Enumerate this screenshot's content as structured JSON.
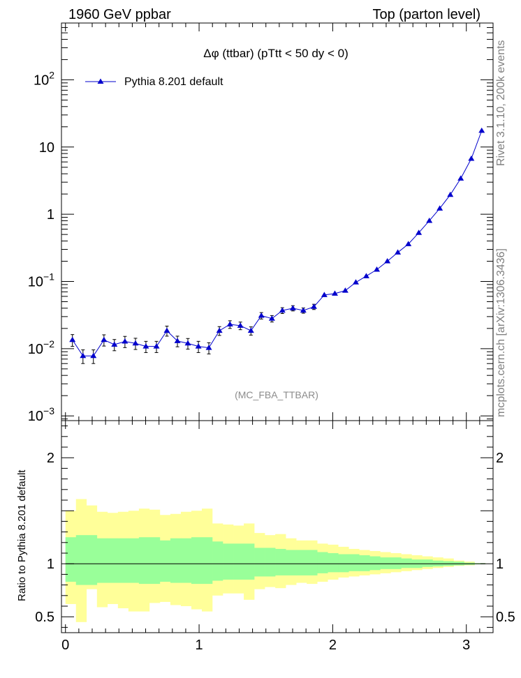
{
  "header": {
    "left": "1960 GeV ppbar",
    "right": "Top (parton level)"
  },
  "side_labels": {
    "rivet": "Rivet 3.1.10, 200k events",
    "mcplots": "mcplots.cern.ch [arXiv:1306.3436]"
  },
  "analysis_id": "(MC_FBA_TTBAR)",
  "colors": {
    "mc": "#0000cc",
    "band_inner": "#99ff99",
    "band_outer": "#ffff99",
    "axis": "#000000",
    "side_text": "#808080"
  },
  "chart_data": [
    {
      "type": "line",
      "title": "Δφ (ttbar) (pTtt < 50 dy < 0)",
      "log_y": true,
      "ylim": [
        0.00085,
        700
      ],
      "xlim": [
        -0.03,
        3.2
      ],
      "y_tick_labels": [
        {
          "value": 0.001,
          "base": "10",
          "exp": "−3",
          "text": ""
        },
        {
          "value": 0.01,
          "base": "10",
          "exp": "−2",
          "text": ""
        },
        {
          "value": 0.1,
          "base": "10",
          "exp": "−1",
          "text": ""
        },
        {
          "value": 1,
          "base": "",
          "exp": "",
          "text": "1"
        },
        {
          "value": 10,
          "base": "",
          "exp": "",
          "text": "10"
        },
        {
          "value": 100,
          "base": "10",
          "exp": "2",
          "text": ""
        }
      ],
      "legend": {
        "label": "Pythia 8.201 default",
        "position": "top-left"
      },
      "series": [
        {
          "name": "Pythia 8.201 default",
          "marker": "triangle",
          "x": [
            0.052,
            0.131,
            0.209,
            0.288,
            0.366,
            0.445,
            0.524,
            0.602,
            0.681,
            0.759,
            0.838,
            0.916,
            0.995,
            1.073,
            1.152,
            1.231,
            1.309,
            1.388,
            1.466,
            1.545,
            1.623,
            1.702,
            1.78,
            1.859,
            1.937,
            2.016,
            2.094,
            2.173,
            2.251,
            2.33,
            2.409,
            2.487,
            2.566,
            2.644,
            2.723,
            2.801,
            2.88,
            2.958,
            3.037,
            3.115
          ],
          "y": [
            0.0135,
            0.0078,
            0.0078,
            0.0135,
            0.0115,
            0.0128,
            0.012,
            0.0108,
            0.0108,
            0.0185,
            0.013,
            0.012,
            0.0108,
            0.0103,
            0.0185,
            0.023,
            0.022,
            0.0185,
            0.031,
            0.028,
            0.037,
            0.04,
            0.037,
            0.042,
            0.063,
            0.066,
            0.073,
            0.097,
            0.12,
            0.15,
            0.2,
            0.27,
            0.36,
            0.53,
            0.8,
            1.22,
            1.95,
            3.4,
            6.7,
            17.5
          ],
          "err_rel": [
            0.2,
            0.23,
            0.23,
            0.19,
            0.19,
            0.19,
            0.19,
            0.19,
            0.19,
            0.17,
            0.18,
            0.18,
            0.19,
            0.19,
            0.15,
            0.13,
            0.13,
            0.14,
            0.11,
            0.11,
            0.1,
            0.09,
            0.09,
            0.09,
            0.07,
            0.07,
            0.06,
            0.06,
            0.05,
            0.05,
            0.04,
            0.04,
            0.03,
            0.03,
            0.03,
            0.02,
            0.02,
            0.02,
            0.01,
            0.01
          ]
        }
      ]
    },
    {
      "type": "area",
      "ylabel": "Ratio to Pythia 8.201 default",
      "ylim": [
        0.35,
        2.35
      ],
      "xlim": [
        -0.03,
        3.2
      ],
      "y_ticks": [
        0.5,
        1,
        2
      ],
      "y_tick_labels": [
        "0.5",
        "1",
        "2"
      ],
      "x_ticks": [
        0,
        1,
        2,
        3
      ],
      "x_tick_labels": [
        "0",
        "1",
        "2",
        "3"
      ],
      "reference_line": 1,
      "bin_edges": [
        0.0,
        0.0785,
        0.157,
        0.2355,
        0.314,
        0.3925,
        0.471,
        0.5495,
        0.628,
        0.7065,
        0.785,
        0.8635,
        0.942,
        1.0205,
        1.099,
        1.1775,
        1.256,
        1.3345,
        1.413,
        1.4915,
        1.57,
        1.6485,
        1.727,
        1.8055,
        1.884,
        1.9625,
        2.041,
        2.1195,
        2.198,
        2.2765,
        2.355,
        2.4335,
        2.512,
        2.5905,
        2.669,
        2.7475,
        2.826,
        2.9045,
        2.983,
        3.0615,
        3.1416
      ],
      "inner_band": {
        "lo": [
          0.83,
          0.8,
          0.8,
          0.82,
          0.82,
          0.82,
          0.82,
          0.81,
          0.81,
          0.83,
          0.82,
          0.82,
          0.81,
          0.81,
          0.84,
          0.85,
          0.85,
          0.85,
          0.88,
          0.88,
          0.89,
          0.89,
          0.89,
          0.89,
          0.91,
          0.92,
          0.92,
          0.93,
          0.93,
          0.94,
          0.95,
          0.95,
          0.96,
          0.96,
          0.97,
          0.975,
          0.98,
          0.985,
          0.99,
          0.995
        ],
        "hi": [
          1.25,
          1.27,
          1.27,
          1.24,
          1.24,
          1.24,
          1.24,
          1.25,
          1.25,
          1.22,
          1.24,
          1.24,
          1.25,
          1.25,
          1.21,
          1.19,
          1.19,
          1.19,
          1.15,
          1.15,
          1.14,
          1.13,
          1.13,
          1.13,
          1.11,
          1.1,
          1.09,
          1.09,
          1.08,
          1.07,
          1.06,
          1.06,
          1.05,
          1.04,
          1.04,
          1.03,
          1.025,
          1.02,
          1.01,
          1.005
        ]
      },
      "outer_band": {
        "lo": [
          0.62,
          0.45,
          0.76,
          0.59,
          0.62,
          0.58,
          0.55,
          0.55,
          0.63,
          0.64,
          0.61,
          0.6,
          0.57,
          0.55,
          0.7,
          0.72,
          0.72,
          0.66,
          0.76,
          0.78,
          0.77,
          0.8,
          0.82,
          0.81,
          0.83,
          0.85,
          0.87,
          0.88,
          0.89,
          0.9,
          0.91,
          0.92,
          0.93,
          0.94,
          0.95,
          0.96,
          0.97,
          0.98,
          0.985,
          0.995
        ],
        "hi": [
          1.5,
          1.61,
          1.55,
          1.49,
          1.48,
          1.49,
          1.5,
          1.52,
          1.51,
          1.46,
          1.47,
          1.49,
          1.5,
          1.52,
          1.38,
          1.37,
          1.36,
          1.38,
          1.29,
          1.27,
          1.28,
          1.24,
          1.22,
          1.22,
          1.19,
          1.18,
          1.16,
          1.14,
          1.13,
          1.12,
          1.11,
          1.1,
          1.09,
          1.08,
          1.07,
          1.06,
          1.05,
          1.03,
          1.02,
          1.005
        ]
      }
    }
  ]
}
